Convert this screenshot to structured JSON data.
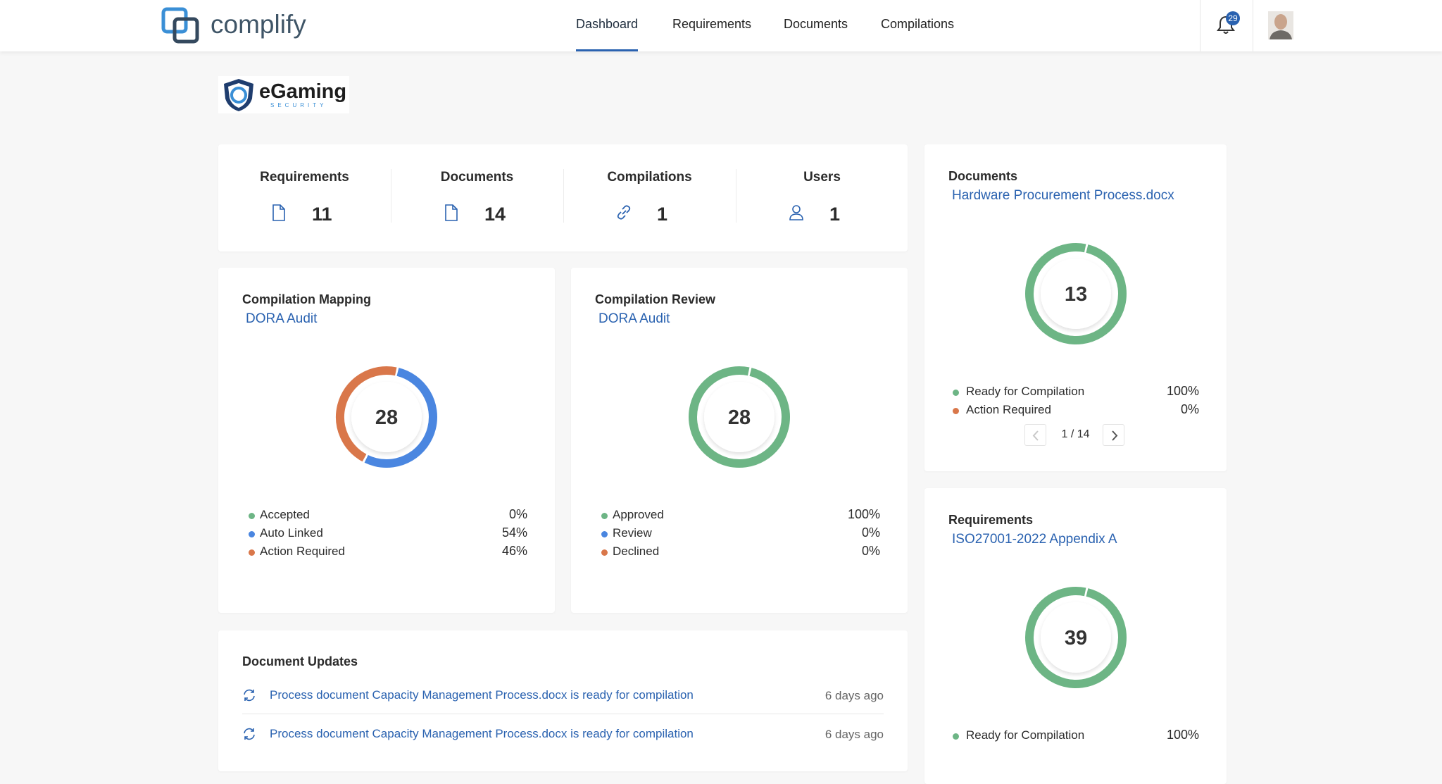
{
  "nav": {
    "brand": "complify",
    "links": [
      "Dashboard",
      "Requirements",
      "Documents",
      "Compilations"
    ],
    "notifications": 29
  },
  "org_logo": {
    "name": "eGaming",
    "tagline": "SECURITY"
  },
  "stats": [
    {
      "label": "Requirements",
      "value": 11
    },
    {
      "label": "Documents",
      "value": 14
    },
    {
      "label": "Compilations",
      "value": 1
    },
    {
      "label": "Users",
      "value": 1
    }
  ],
  "charts": [
    {
      "type": "donut",
      "title": "Compilation Mapping",
      "subtitle": "DORA Audit",
      "total": 28,
      "legend": [
        {
          "name": "Accepted",
          "color": "#6db585",
          "value": 0,
          "label": "0%"
        },
        {
          "name": "Auto Linked",
          "color": "#4a86e0",
          "value": 54,
          "label": "54%"
        },
        {
          "name": "Action Required",
          "color": "#d9774a",
          "value": 46,
          "label": "46%"
        }
      ]
    },
    {
      "type": "donut",
      "title": "Compilation Review",
      "subtitle": "DORA Audit",
      "total": 28,
      "legend": [
        {
          "name": "Approved",
          "color": "#6db585",
          "value": 100,
          "label": "100%"
        },
        {
          "name": "Review",
          "color": "#4a86e0",
          "value": 0,
          "label": "0%"
        },
        {
          "name": "Declined",
          "color": "#d9774a",
          "value": 0,
          "label": "0%"
        }
      ]
    },
    {
      "type": "donut",
      "title": "Documents",
      "subtitle": "Hardware Procurement Process.docx",
      "total": 13,
      "legend": [
        {
          "name": "Ready for Compilation",
          "color": "#6db585",
          "value": 100,
          "label": "100%"
        },
        {
          "name": "Action Required",
          "color": "#d9774a",
          "value": 0,
          "label": "0%"
        }
      ],
      "pagination": "1 / 14"
    },
    {
      "type": "donut",
      "title": "Requirements",
      "subtitle": "ISO27001-2022 Appendix A",
      "total": 39,
      "legend": [
        {
          "name": "Ready for Compilation",
          "color": "#6db585",
          "value": 100,
          "label": "100%"
        }
      ]
    }
  ],
  "updates": {
    "title": "Document Updates",
    "items": [
      {
        "text": "Process document Capacity Management Process.docx is ready for compilation",
        "time": "6 days ago"
      },
      {
        "text": "Process document Capacity Management Process.docx is ready for compilation",
        "time": "6 days ago"
      }
    ]
  }
}
